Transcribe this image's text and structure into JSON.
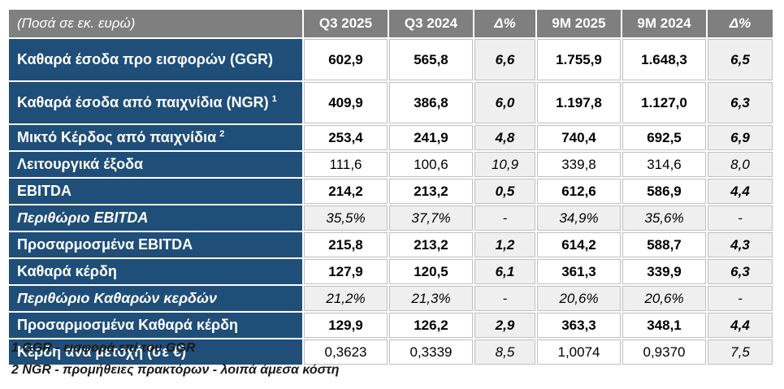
{
  "table": {
    "header": {
      "label": "(Ποσά σε εκ. ευρώ)",
      "columns": [
        "Q3 2025",
        "Q3 2024",
        "Δ%",
        "9M 2025",
        "9M 2024",
        "Δ%"
      ]
    },
    "rows": [
      {
        "label": "Καθαρά έσοδα προ εισφορών (GGR)",
        "sup": "",
        "values": [
          "602,9",
          "565,8",
          "6,6",
          "1.755,9",
          "1.648,3",
          "6,5"
        ]
      },
      {
        "label": "Καθαρά έσοδα από παιχνίδια (NGR)",
        "sup": "1",
        "values": [
          "409,9",
          "386,8",
          "6,0",
          "1.197,8",
          "1.127,0",
          "6,3"
        ]
      },
      {
        "label": "Μικτό Κέρδος από παιχνίδια",
        "sup": "2",
        "values": [
          "253,4",
          "241,9",
          "4,8",
          "740,4",
          "692,5",
          "6,9"
        ]
      },
      {
        "label": "Λειτουργικά έξοδα",
        "sup": "",
        "values": [
          "111,6",
          "100,6",
          "10,9",
          "339,8",
          "314,6",
          "8,0"
        ]
      },
      {
        "label": "EBITDA",
        "sup": "",
        "values": [
          "214,2",
          "213,2",
          "0,5",
          "612,6",
          "586,9",
          "4,4"
        ]
      },
      {
        "label": "Περιθώριο EBITDA",
        "sup": "",
        "values": [
          "35,5%",
          "37,7%",
          "-",
          "34,9%",
          "35,6%",
          "-"
        ]
      },
      {
        "label": "Προσαρμοσμένα EBITDA",
        "sup": "",
        "values": [
          "215,8",
          "213,2",
          "1,2",
          "614,2",
          "588,7",
          "4,3"
        ]
      },
      {
        "label": "Καθαρά κέρδη",
        "sup": "",
        "values": [
          "127,9",
          "120,5",
          "6,1",
          "361,3",
          "339,9",
          "6,3"
        ]
      },
      {
        "label": "Περιθώριο Καθαρών κερδών",
        "sup": "",
        "values": [
          "21,2%",
          "21,3%",
          "-",
          "20,6%",
          "20,6%",
          "-"
        ]
      },
      {
        "label": "Προσαρμοσμένα Καθαρά κέρδη",
        "sup": "",
        "values": [
          "129,9",
          "126,2",
          "2,9",
          "363,3",
          "348,1",
          "4,4"
        ]
      },
      {
        "label": "Κέρδη ανά μετοχή (σε €)",
        "sup": "",
        "values": [
          "0,3623",
          "0,3339",
          "8,5",
          "1,0074",
          "0,9370",
          "7,5"
        ]
      }
    ]
  },
  "footnotes": [
    "1 GGR - εισφορά επί του GGR",
    "2 NGR - προμήθειες πρακτόρων - λοιπά άμεσα κόστη"
  ],
  "colors": {
    "row_navy": "#1f4e79",
    "header_gray": "#7f7f7f",
    "delta_cell_gray": "#efefef",
    "cell_border_gray": "#bfbfbf",
    "value_text": "#000000",
    "label_text": "#ffffff"
  }
}
